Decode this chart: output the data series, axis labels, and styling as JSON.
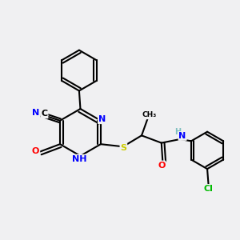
{
  "bg_color": "#f0f0f2",
  "bond_color": "#000000",
  "line_width": 1.5,
  "atom_colors": {
    "N": "#0000ff",
    "O": "#ff0000",
    "S": "#cccc00",
    "Cl": "#00bb00",
    "C": "#000000",
    "H": "#7fbfbf"
  },
  "font_size": 8.0
}
